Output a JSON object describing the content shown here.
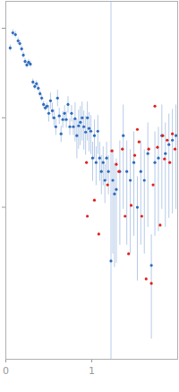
{
  "chart_data": {
    "type": "scatter",
    "log": "y",
    "tick_labels": "x",
    "xlim": [
      0,
      2
    ],
    "ylim": [
      0.0002,
      2
    ],
    "xticks": [
      0,
      1
    ],
    "yticks": [
      0.01,
      0.1,
      1
    ],
    "series": [
      {
        "color": "#2e6bbd",
        "x": [
          0.051,
          0.082,
          0.112,
          0.143,
          0.163,
          0.184,
          0.204,
          0.224,
          0.245,
          0.265,
          0.286,
          0.316,
          0.337,
          0.357,
          0.378,
          0.398,
          0.418,
          0.439,
          0.459,
          0.48,
          0.5,
          0.52,
          0.541,
          0.561,
          0.582,
          0.602,
          0.622,
          0.643,
          0.663,
          0.684,
          0.704,
          0.724,
          0.745,
          0.765,
          0.786,
          0.806,
          0.827,
          0.847,
          0.867,
          0.888,
          0.908,
          0.929,
          0.949,
          0.969,
          0.99,
          1.01,
          1.031,
          1.051,
          1.071,
          1.092,
          1.112,
          1.133,
          1.153,
          1.173,
          1.194,
          1.224,
          1.245,
          1.265,
          1.286,
          1.327,
          1.367,
          1.408,
          1.449,
          1.49,
          1.531,
          1.571,
          1.612,
          1.653,
          1.694,
          1.735,
          1.776,
          1.816,
          1.857,
          1.898,
          1.939,
          1.98
        ],
        "values": [
          0.603,
          0.891,
          0.851,
          0.724,
          0.676,
          0.589,
          0.501,
          0.427,
          0.389,
          0.417,
          0.398,
          0.251,
          0.224,
          0.24,
          0.214,
          0.186,
          0.166,
          0.141,
          0.129,
          0.135,
          0.112,
          0.155,
          0.12,
          0.1,
          0.0794,
          0.166,
          0.105,
          0.0661,
          0.0955,
          0.112,
          0.0955,
          0.141,
          0.0794,
          0.112,
          0.0794,
          0.0977,
          0.0631,
          0.0813,
          0.0891,
          0.1,
          0.0794,
          0.0692,
          0.1,
          0.0759,
          0.0708,
          0.0355,
          0.0631,
          0.0316,
          0.0708,
          0.0355,
          0.0251,
          0.0316,
          0.02,
          0.0355,
          0.0251,
          0.00251,
          0.02,
          0.0141,
          0.0158,
          0.0251,
          0.0631,
          0.0251,
          0.02,
          0.0316,
          0.01,
          0.0251,
          0.02,
          0.0398,
          0.00224,
          0.0316,
          0.0355,
          0.0631,
          0.0398,
          0.0501,
          0.0562,
          0.0631
        ],
        "error_low": [
          0.555,
          0.82,
          0.783,
          0.666,
          0.622,
          0.542,
          0.461,
          0.393,
          0.358,
          0.384,
          0.366,
          0.231,
          0.206,
          0.221,
          0.197,
          0.171,
          0.153,
          0.13,
          0.119,
          0.124,
          0.0896,
          0.124,
          0.096,
          0.08,
          0.0635,
          0.133,
          0.084,
          0.0529,
          0.0764,
          0.0896,
          0.0764,
          0.113,
          0.0635,
          0.0896,
          0.0635,
          0.0537,
          0.0347,
          0.0447,
          0.049,
          0.055,
          0.0437,
          0.0381,
          0.055,
          0.0417,
          0.0389,
          0.0195,
          0.0347,
          0.0174,
          0.0389,
          0.0195,
          0.0138,
          0.0174,
          0.011,
          0.0195,
          0.0138,
          0.0001,
          0.003,
          0.00212,
          0.00237,
          0.00377,
          0.00947,
          0.00377,
          0.003,
          0.00474,
          0.0015,
          0.00377,
          0.003,
          0.00597,
          0.000336,
          0.00474,
          0.00533,
          0.00947,
          0.00597,
          0.00752,
          0.00843,
          0.00947
        ],
        "error_high": [
          0.651,
          0.962,
          0.919,
          0.782,
          0.73,
          0.636,
          0.541,
          0.461,
          0.42,
          0.45,
          0.43,
          0.271,
          0.242,
          0.259,
          0.231,
          0.201,
          0.179,
          0.152,
          0.139,
          0.146,
          0.137,
          0.189,
          0.146,
          0.122,
          0.0969,
          0.203,
          0.128,
          0.0806,
          0.117,
          0.137,
          0.117,
          0.172,
          0.0969,
          0.137,
          0.0969,
          0.147,
          0.0947,
          0.122,
          0.134,
          0.15,
          0.119,
          0.104,
          0.15,
          0.114,
          0.106,
          0.0533,
          0.0947,
          0.0474,
          0.106,
          0.0533,
          0.0377,
          0.0474,
          0.03,
          0.0533,
          0.0377,
          3,
          0.044,
          0.031,
          0.0348,
          0.0552,
          0.139,
          0.0552,
          0.044,
          0.0695,
          0.022,
          0.0552,
          0.044,
          0.0876,
          0.00493,
          0.0695,
          0.0781,
          0.139,
          0.0876,
          0.11,
          0.124,
          0.139
        ]
      },
      {
        "color": "#e0201b",
        "x": [
          0.939,
          0.949,
          1.031,
          1.082,
          1.184,
          1.235,
          1.286,
          1.316,
          1.357,
          1.388,
          1.429,
          1.459,
          1.5,
          1.531,
          1.551,
          1.582,
          1.633,
          1.663,
          1.694,
          1.714,
          1.735,
          1.765,
          1.796,
          1.827,
          1.847,
          1.878,
          1.908,
          1.939,
          1.969
        ],
        "values": [
          0.0316,
          0.00794,
          0.012,
          0.00501,
          0.0178,
          0.0427,
          0.0302,
          0.0251,
          0.0447,
          0.00794,
          0.00302,
          0.0105,
          0.038,
          0.0741,
          0.0537,
          0.00794,
          0.00158,
          0.0447,
          0.00141,
          0.0178,
          0.135,
          0.0468,
          0.00631,
          0.0631,
          0.0347,
          0.0562,
          0.0316,
          0.0661,
          0.0447
        ]
      }
    ]
  }
}
